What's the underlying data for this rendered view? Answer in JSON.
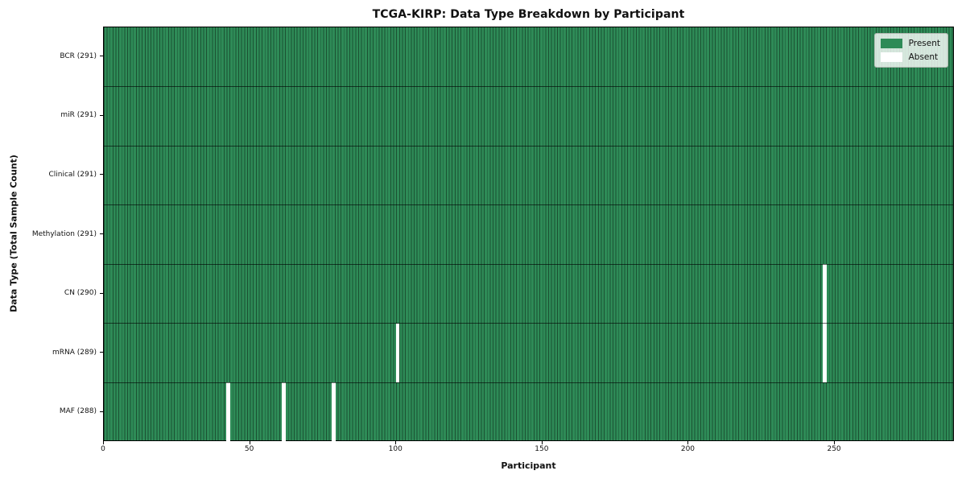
{
  "chart_data": {
    "type": "heatmap",
    "title": "TCGA-KIRP: Data Type Breakdown by Participant",
    "xlabel": "Participant",
    "ylabel": "Data Type (Total Sample Count)",
    "x_ticks": [
      0,
      50,
      100,
      150,
      200,
      250
    ],
    "xlim": [
      0,
      291
    ],
    "grid": "row-dividers",
    "legend_position": "upper-right",
    "rows": [
      {
        "label": "BCR (291)",
        "name": "BCR",
        "total": 291,
        "absent_participants": []
      },
      {
        "label": "miR (291)",
        "name": "miR",
        "total": 291,
        "absent_participants": []
      },
      {
        "label": "Clinical (291)",
        "name": "Clinical",
        "total": 291,
        "absent_participants": []
      },
      {
        "label": "Methylation (291)",
        "name": "Methylation",
        "total": 291,
        "absent_participants": []
      },
      {
        "label": "CN (290)",
        "name": "CN",
        "total": 290,
        "absent_participants": [
          246
        ]
      },
      {
        "label": "mRNA (289)",
        "name": "mRNA",
        "total": 289,
        "absent_participants": [
          100,
          246
        ]
      },
      {
        "label": "MAF (288)",
        "name": "MAF",
        "total": 288,
        "absent_participants": [
          42,
          61,
          78
        ]
      }
    ],
    "legend": [
      {
        "label": "Present",
        "color": "#2e8b57"
      },
      {
        "label": "Absent",
        "color": "#ffffff"
      }
    ],
    "colors": {
      "present": "#2e8b57",
      "absent": "#ffffff",
      "cell_edge": "rgba(0,0,0,0.42)",
      "row_divider": "rgba(0,0,0,0.60)"
    }
  }
}
